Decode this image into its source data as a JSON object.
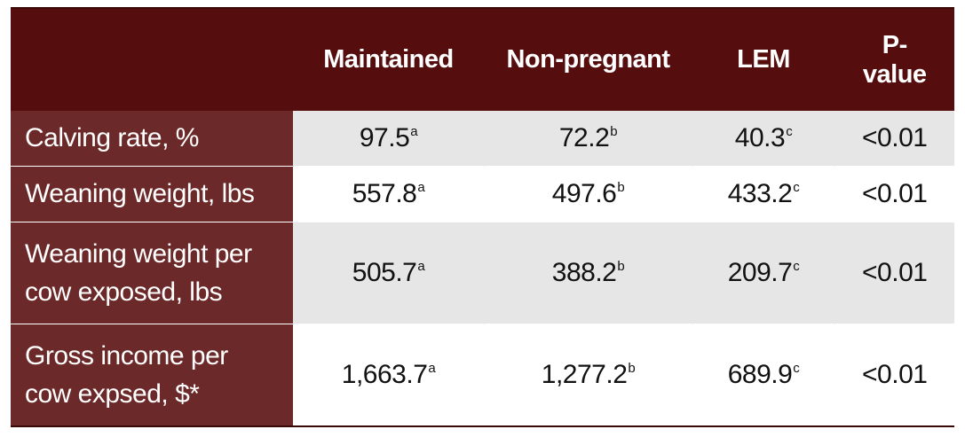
{
  "table": {
    "header": [
      "",
      "Maintained",
      "Non-pregnant",
      "LEM",
      "P-value"
    ],
    "rows": [
      {
        "label": "Calving rate, %",
        "cells": [
          {
            "value": "97.5",
            "sup": "a"
          },
          {
            "value": "72.2",
            "sup": "b"
          },
          {
            "value": "40.3",
            "sup": "c"
          },
          {
            "value": "<0.01"
          }
        ]
      },
      {
        "label": "Weaning weight, lbs",
        "cells": [
          {
            "value": "557.8",
            "sup": "a"
          },
          {
            "value": "497.6",
            "sup": "b"
          },
          {
            "value": "433.2",
            "sup": "c"
          },
          {
            "value": "<0.01"
          }
        ]
      },
      {
        "label": "Weaning weight per cow exposed, lbs",
        "cells": [
          {
            "value": "505.7",
            "sup": "a"
          },
          {
            "value": "388.2",
            "sup": "b"
          },
          {
            "value": "209.7",
            "sup": "c"
          },
          {
            "value": "<0.01"
          }
        ]
      },
      {
        "label": "Gross income per cow expsed, $*",
        "cells": [
          {
            "value": "1,663.7",
            "sup": "a"
          },
          {
            "value": "1,277.2",
            "sup": "b"
          },
          {
            "value": "689.9",
            "sup": "c"
          },
          {
            "value": "<0.01"
          }
        ]
      }
    ]
  }
}
